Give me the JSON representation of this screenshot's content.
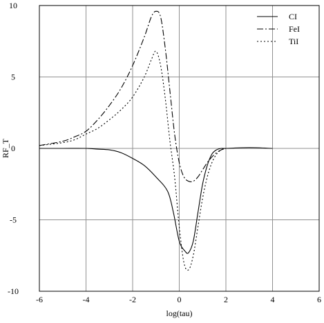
{
  "chart_data": {
    "type": "line",
    "xlabel": "log(tau)",
    "ylabel": "RF_T",
    "xlim": [
      -6,
      6
    ],
    "ylim": [
      -10,
      10
    ],
    "x_ticks": [
      "-6",
      "-4",
      "-2",
      "0",
      "2",
      "4",
      "6"
    ],
    "y_ticks": [
      "10",
      "5",
      "0",
      "-5",
      "-10"
    ],
    "grid": true,
    "legend_placement": "top-right",
    "series": [
      {
        "name": "CI",
        "style": "solid",
        "color": "#000000",
        "x": [
          -6,
          -5,
          -4,
          -3.5,
          -3,
          -2.5,
          -2,
          -1.5,
          -1,
          -0.5,
          -0.25,
          0,
          0.25,
          0.4,
          0.6,
          0.8,
          1,
          1.2,
          1.4,
          1.6,
          1.8,
          2,
          3,
          4
        ],
        "y": [
          0,
          0,
          0,
          -0.05,
          -0.1,
          -0.3,
          -0.7,
          -1.2,
          -2.0,
          -3.0,
          -4.5,
          -6.5,
          -7.2,
          -7.3,
          -6.5,
          -4.5,
          -2.5,
          -1.2,
          -0.4,
          -0.1,
          0,
          0,
          0.05,
          0
        ]
      },
      {
        "name": "FeI",
        "style": "dashdot",
        "color": "#000000",
        "x": [
          -6,
          -5,
          -4.5,
          -4,
          -3.5,
          -3,
          -2.5,
          -2,
          -1.5,
          -1.2,
          -1,
          -0.8,
          -0.6,
          -0.4,
          -0.2,
          0,
          0.2,
          0.4,
          0.6,
          0.8,
          1,
          1.2,
          1.4,
          1.6,
          1.8,
          2
        ],
        "y": [
          0.2,
          0.5,
          0.8,
          1.2,
          2.0,
          3.0,
          4.2,
          5.8,
          7.8,
          9.2,
          9.6,
          9.2,
          7.0,
          4.0,
          1.0,
          -1.0,
          -2.0,
          -2.3,
          -2.3,
          -2.0,
          -1.5,
          -1.0,
          -0.6,
          -0.3,
          -0.1,
          0
        ]
      },
      {
        "name": "TiI",
        "style": "dotted",
        "color": "#000000",
        "x": [
          -6,
          -5,
          -4.5,
          -4,
          -3.5,
          -3,
          -2.5,
          -2,
          -1.5,
          -1.2,
          -1,
          -0.8,
          -0.6,
          -0.4,
          -0.2,
          0,
          0.2,
          0.4,
          0.6,
          0.8,
          1,
          1.2,
          1.4,
          1.6,
          1.8,
          2
        ],
        "y": [
          0.2,
          0.4,
          0.6,
          1.0,
          1.4,
          2.0,
          2.7,
          3.6,
          5.0,
          6.2,
          6.8,
          5.8,
          3.5,
          0.5,
          -2.0,
          -5.5,
          -8.0,
          -8.5,
          -7.5,
          -5.5,
          -3.5,
          -2.0,
          -1.0,
          -0.4,
          -0.1,
          0
        ]
      }
    ]
  }
}
